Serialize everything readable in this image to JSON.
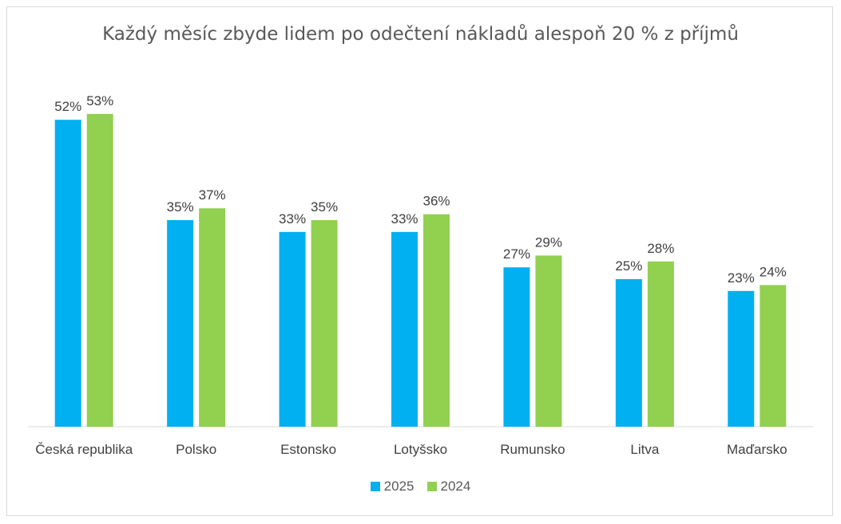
{
  "chart_data": {
    "type": "bar",
    "title": "Každý měsíc zbyde lidem po odečtení nákladů alespoň 20 % z příjmů",
    "categories": [
      "Česká republika",
      "Polsko",
      "Estonsko",
      "Lotyšsko",
      "Rumunsko",
      "Litva",
      "Maďarsko"
    ],
    "series": [
      {
        "name": "2025",
        "color": "#00b0f0",
        "values": [
          52,
          35,
          33,
          33,
          27,
          25,
          23
        ],
        "labels": [
          "52%",
          "35%",
          "33%",
          "33%",
          "27%",
          "25%",
          "23%"
        ]
      },
      {
        "name": "2024",
        "color": "#92d050",
        "values": [
          53,
          37,
          35,
          36,
          29,
          28,
          24
        ],
        "labels": [
          "53%",
          "37%",
          "35%",
          "36%",
          "29%",
          "28%",
          "24%"
        ]
      }
    ],
    "ylim": [
      0,
      60
    ],
    "grid": false,
    "legend_position": "bottom"
  }
}
